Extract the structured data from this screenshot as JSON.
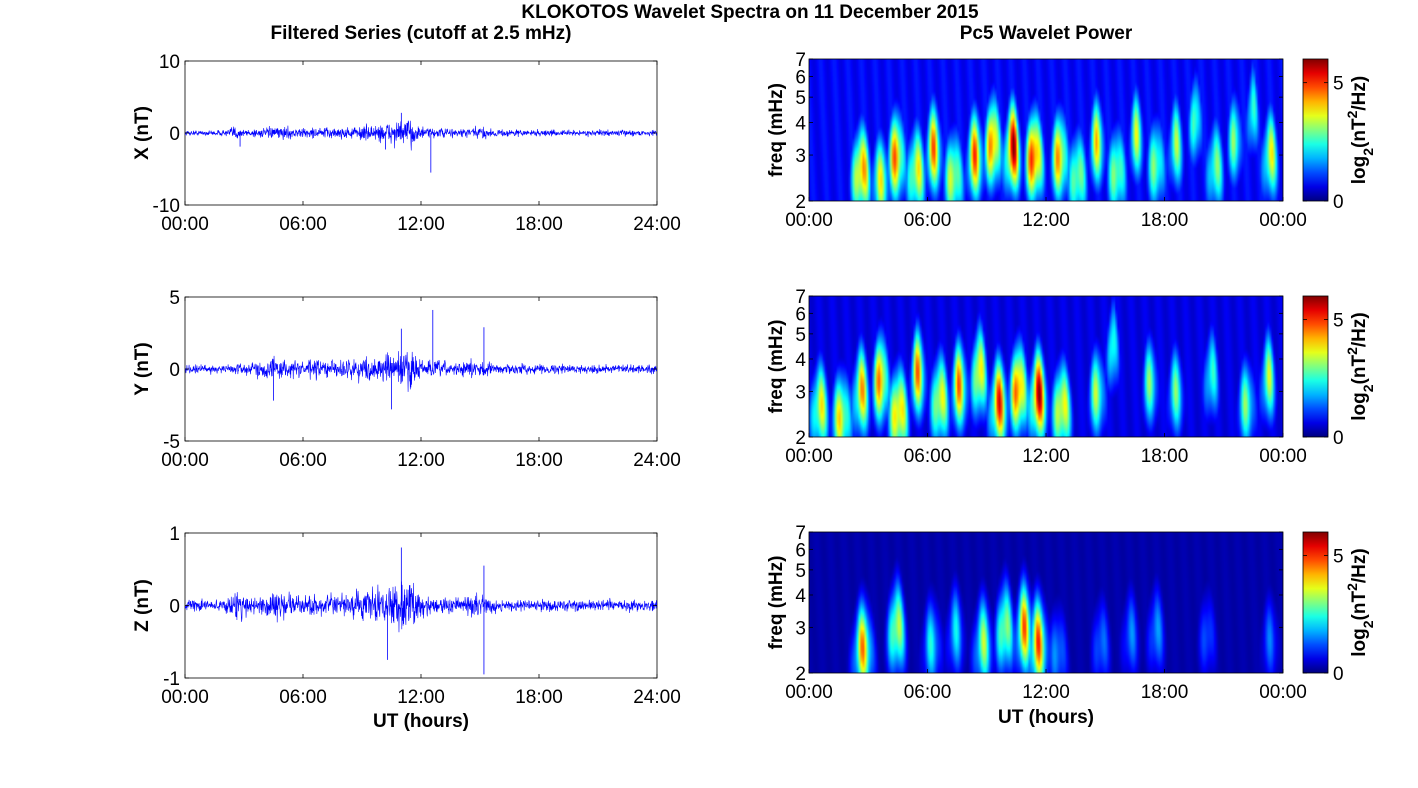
{
  "figure": {
    "title": "KLOKOTOS Wavelet Spectra on 11 December 2015",
    "left_title": "Filtered Series (cutoff at 2.5 mHz)",
    "right_title": "Pc5 Wavelet Power",
    "x_label": "UT (hours)",
    "freq_label": "freq (mHz)",
    "colorbar_label_prefix": "log",
    "colorbar_label_sub": "2",
    "colorbar_label_paren": "(nT",
    "colorbar_label_sup": "2",
    "colorbar_label_tail": "/Hz)",
    "series_color": "#0000ff"
  },
  "chart_data": [
    {
      "type": "line",
      "name": "X",
      "ylabel": "X (nT)",
      "xlim": [
        0,
        24
      ],
      "ylim": [
        -10,
        10
      ],
      "yticks": [
        "10",
        "0",
        "-10"
      ],
      "xticks": [
        "00:00",
        "06:00",
        "12:00",
        "18:00",
        "24:00"
      ],
      "envelope": {
        "t": [
          0,
          2,
          2.5,
          3,
          4,
          5,
          6,
          7,
          8,
          9,
          10,
          11,
          11.5,
          12,
          13,
          14,
          15,
          16,
          17,
          18,
          19,
          20,
          21,
          22,
          23,
          24
        ],
        "a": [
          0.5,
          0.6,
          1.6,
          0.8,
          1.0,
          1.3,
          1.0,
          1.2,
          1.2,
          1.5,
          2.0,
          2.6,
          3.0,
          1.2,
          1.0,
          1.0,
          1.3,
          0.8,
          0.7,
          0.7,
          0.6,
          0.6,
          0.6,
          0.6,
          0.6,
          0.6
        ]
      },
      "spikes": [
        {
          "t": 2.8,
          "v": -1.9
        },
        {
          "t": 11.0,
          "v": 2.8
        },
        {
          "t": 12.5,
          "v": -5.5
        },
        {
          "t": 10.2,
          "v": -2.3
        }
      ]
    },
    {
      "type": "line",
      "name": "Y",
      "ylabel": "Y (nT)",
      "xlim": [
        0,
        24
      ],
      "ylim": [
        -5,
        5
      ],
      "yticks": [
        "5",
        "0",
        "-5"
      ],
      "xticks": [
        "00:00",
        "06:00",
        "12:00",
        "18:00",
        "24:00"
      ],
      "envelope": {
        "t": [
          0,
          2,
          3,
          4,
          4.5,
          5,
          6,
          7,
          8,
          9,
          10,
          11,
          11.5,
          12,
          13,
          14,
          15,
          16,
          17,
          18,
          19,
          20,
          21,
          22,
          23,
          24
        ],
        "a": [
          0.4,
          0.5,
          0.6,
          0.9,
          1.3,
          1.0,
          0.9,
          1.0,
          1.0,
          1.1,
          1.3,
          2.0,
          2.2,
          1.1,
          0.8,
          0.8,
          0.9,
          0.5,
          0.5,
          0.5,
          0.45,
          0.45,
          0.45,
          0.45,
          0.45,
          0.45
        ]
      },
      "spikes": [
        {
          "t": 12.6,
          "v": 4.1
        },
        {
          "t": 11.0,
          "v": 2.8
        },
        {
          "t": 15.2,
          "v": 2.9
        },
        {
          "t": 10.5,
          "v": -2.8
        },
        {
          "t": 4.5,
          "v": -2.2
        }
      ]
    },
    {
      "type": "line",
      "name": "Z",
      "ylabel": "Z (nT)",
      "xlim": [
        0,
        24
      ],
      "ylim": [
        -1,
        1
      ],
      "yticks": [
        "1",
        "0",
        "-1"
      ],
      "xticks": [
        "00:00",
        "06:00",
        "12:00",
        "18:00",
        "24:00"
      ],
      "envelope": {
        "t": [
          0,
          2,
          2.7,
          3.2,
          4,
          5,
          6,
          7,
          8,
          9,
          10,
          11,
          11.5,
          12,
          13,
          14,
          15,
          16,
          17,
          18,
          19,
          20,
          21,
          22,
          23,
          24
        ],
        "a": [
          0.1,
          0.13,
          0.35,
          0.2,
          0.22,
          0.3,
          0.2,
          0.2,
          0.22,
          0.3,
          0.4,
          0.55,
          0.5,
          0.25,
          0.18,
          0.17,
          0.22,
          0.13,
          0.12,
          0.12,
          0.12,
          0.12,
          0.12,
          0.12,
          0.12,
          0.12
        ]
      },
      "spikes": [
        {
          "t": 11.0,
          "v": 0.8
        },
        {
          "t": 10.3,
          "v": -0.75
        },
        {
          "t": 15.2,
          "v": -0.95
        },
        {
          "t": 15.2,
          "v": 0.55
        }
      ]
    },
    {
      "type": "heatmap",
      "name": "X wavelet power",
      "ylabel": "freq (mHz)",
      "xlim": [
        0,
        24
      ],
      "ylim": [
        2,
        7
      ],
      "yscale": "log",
      "yticks": [
        "7",
        "6",
        "5",
        "4",
        "3",
        "2"
      ],
      "xticks": [
        "00:00",
        "06:00",
        "12:00",
        "18:00",
        "00:00"
      ],
      "clim": [
        0,
        6
      ],
      "cticks": [
        "5",
        "0"
      ],
      "baseline": 0.9,
      "blobs": [
        {
          "t": 2.6,
          "f": 2.6,
          "p": 5.5
        },
        {
          "t": 3.6,
          "f": 2.4,
          "p": 4.0
        },
        {
          "t": 4.4,
          "f": 3.0,
          "p": 5.5
        },
        {
          "t": 5.4,
          "f": 2.6,
          "p": 4.6
        },
        {
          "t": 6.3,
          "f": 3.2,
          "p": 5.0
        },
        {
          "t": 7.3,
          "f": 2.5,
          "p": 4.4
        },
        {
          "t": 8.4,
          "f": 3.0,
          "p": 5.2
        },
        {
          "t": 9.3,
          "f": 3.4,
          "p": 6.0
        },
        {
          "t": 10.3,
          "f": 3.2,
          "p": 6.4
        },
        {
          "t": 11.4,
          "f": 3.0,
          "p": 6.5
        },
        {
          "t": 12.7,
          "f": 3.0,
          "p": 5.2
        },
        {
          "t": 13.6,
          "f": 2.5,
          "p": 4.0
        },
        {
          "t": 14.6,
          "f": 3.4,
          "p": 4.4
        },
        {
          "t": 15.6,
          "f": 2.6,
          "p": 4.0
        },
        {
          "t": 16.6,
          "f": 3.6,
          "p": 3.8
        },
        {
          "t": 17.6,
          "f": 2.8,
          "p": 3.8
        },
        {
          "t": 18.6,
          "f": 3.3,
          "p": 3.6
        },
        {
          "t": 19.6,
          "f": 4.2,
          "p": 3.7
        },
        {
          "t": 20.6,
          "f": 2.7,
          "p": 3.6
        },
        {
          "t": 21.6,
          "f": 3.5,
          "p": 3.6
        },
        {
          "t": 22.5,
          "f": 4.5,
          "p": 3.4
        },
        {
          "t": 23.4,
          "f": 3.0,
          "p": 4.2
        }
      ]
    },
    {
      "type": "heatmap",
      "name": "Y wavelet power",
      "ylabel": "freq (mHz)",
      "xlim": [
        0,
        24
      ],
      "ylim": [
        2,
        7
      ],
      "yscale": "log",
      "yticks": [
        "7",
        "6",
        "5",
        "4",
        "3",
        "2"
      ],
      "xticks": [
        "00:00",
        "06:00",
        "12:00",
        "18:00",
        "00:00"
      ],
      "clim": [
        0,
        6
      ],
      "cticks": [
        "5",
        "0"
      ],
      "baseline": 0.7,
      "blobs": [
        {
          "t": 0.5,
          "f": 2.6,
          "p": 4.4
        },
        {
          "t": 1.6,
          "f": 2.4,
          "p": 4.6
        },
        {
          "t": 2.6,
          "f": 3.0,
          "p": 4.8
        },
        {
          "t": 3.6,
          "f": 3.4,
          "p": 5.6
        },
        {
          "t": 4.5,
          "f": 2.5,
          "p": 5.4
        },
        {
          "t": 5.5,
          "f": 3.6,
          "p": 5.0
        },
        {
          "t": 6.6,
          "f": 2.8,
          "p": 4.8
        },
        {
          "t": 7.6,
          "f": 3.2,
          "p": 5.0
        },
        {
          "t": 8.6,
          "f": 3.6,
          "p": 5.2
        },
        {
          "t": 9.6,
          "f": 2.7,
          "p": 5.6
        },
        {
          "t": 10.6,
          "f": 3.1,
          "p": 6.2
        },
        {
          "t": 11.6,
          "f": 2.9,
          "p": 6.3
        },
        {
          "t": 12.8,
          "f": 2.6,
          "p": 5.0
        },
        {
          "t": 14.6,
          "f": 3.0,
          "p": 3.8
        },
        {
          "t": 15.4,
          "f": 4.6,
          "p": 3.6
        },
        {
          "t": 17.3,
          "f": 3.3,
          "p": 3.4
        },
        {
          "t": 18.6,
          "f": 3.0,
          "p": 3.2
        },
        {
          "t": 20.4,
          "f": 3.5,
          "p": 3.2
        },
        {
          "t": 22.2,
          "f": 2.7,
          "p": 3.4
        },
        {
          "t": 23.3,
          "f": 3.4,
          "p": 3.8
        }
      ]
    },
    {
      "type": "heatmap",
      "name": "Z wavelet power",
      "ylabel": "freq (mHz)",
      "xlim": [
        0,
        24
      ],
      "ylim": [
        2,
        7
      ],
      "yscale": "log",
      "yticks": [
        "7",
        "6",
        "5",
        "4",
        "3",
        "2"
      ],
      "xticks": [
        "00:00",
        "06:00",
        "12:00",
        "18:00",
        "00:00"
      ],
      "clim": [
        0,
        6
      ],
      "cticks": [
        "5",
        "0"
      ],
      "baseline": 0.3,
      "blobs": [
        {
          "t": 2.7,
          "f": 2.5,
          "p": 4.8
        },
        {
          "t": 4.4,
          "f": 3.0,
          "p": 4.4
        },
        {
          "t": 6.2,
          "f": 2.6,
          "p": 2.6
        },
        {
          "t": 7.4,
          "f": 2.9,
          "p": 2.4
        },
        {
          "t": 8.8,
          "f": 2.6,
          "p": 3.6
        },
        {
          "t": 9.9,
          "f": 3.0,
          "p": 4.2
        },
        {
          "t": 10.9,
          "f": 3.0,
          "p": 5.0
        },
        {
          "t": 11.6,
          "f": 2.6,
          "p": 5.2
        },
        {
          "t": 12.6,
          "f": 2.4,
          "p": 2.0
        },
        {
          "t": 14.8,
          "f": 2.6,
          "p": 1.8
        },
        {
          "t": 16.3,
          "f": 2.8,
          "p": 1.8
        },
        {
          "t": 17.6,
          "f": 2.9,
          "p": 2.0
        },
        {
          "t": 20.2,
          "f": 2.8,
          "p": 1.6
        },
        {
          "t": 23.4,
          "f": 2.7,
          "p": 1.6
        }
      ]
    }
  ]
}
